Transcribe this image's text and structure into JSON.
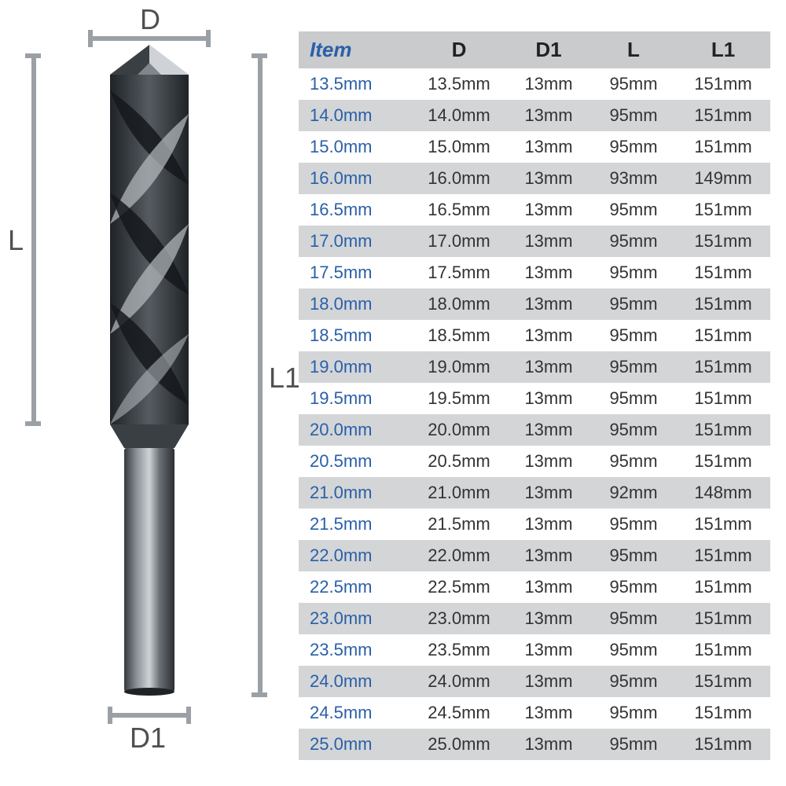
{
  "diagram": {
    "labels": {
      "D": "D",
      "D1": "D1",
      "L": "L",
      "L1": "L1"
    },
    "colors": {
      "dim_line": "#9aa0a6",
      "label_text": "#505050",
      "drill_dark": "#2b2f33",
      "drill_mid": "#555b61",
      "drill_light": "#9aa0a6",
      "drill_highlight": "#cfd3d7"
    }
  },
  "table": {
    "type": "table",
    "header_bg": "#c9cbcd",
    "row_odd_bg": "#ffffff",
    "row_even_bg": "#d3d5d7",
    "item_color": "#2a5fa8",
    "value_color": "#333333",
    "header_value_color": "#222222",
    "font_size_header": 26,
    "font_size_cell": 22,
    "columns": [
      "Item",
      "D",
      "D1",
      "L",
      "L1"
    ],
    "rows": [
      [
        "13.5mm",
        "13.5mm",
        "13mm",
        "95mm",
        "151mm"
      ],
      [
        "14.0mm",
        "14.0mm",
        "13mm",
        "95mm",
        "151mm"
      ],
      [
        "15.0mm",
        "15.0mm",
        "13mm",
        "95mm",
        "151mm"
      ],
      [
        "16.0mm",
        "16.0mm",
        "13mm",
        "93mm",
        "149mm"
      ],
      [
        "16.5mm",
        "16.5mm",
        "13mm",
        "95mm",
        "151mm"
      ],
      [
        "17.0mm",
        "17.0mm",
        "13mm",
        "95mm",
        "151mm"
      ],
      [
        "17.5mm",
        "17.5mm",
        "13mm",
        "95mm",
        "151mm"
      ],
      [
        "18.0mm",
        "18.0mm",
        "13mm",
        "95mm",
        "151mm"
      ],
      [
        "18.5mm",
        "18.5mm",
        "13mm",
        "95mm",
        "151mm"
      ],
      [
        "19.0mm",
        "19.0mm",
        "13mm",
        "95mm",
        "151mm"
      ],
      [
        "19.5mm",
        "19.5mm",
        "13mm",
        "95mm",
        "151mm"
      ],
      [
        "20.0mm",
        "20.0mm",
        "13mm",
        "95mm",
        "151mm"
      ],
      [
        "20.5mm",
        "20.5mm",
        "13mm",
        "95mm",
        "151mm"
      ],
      [
        "21.0mm",
        "21.0mm",
        "13mm",
        "92mm",
        "148mm"
      ],
      [
        "21.5mm",
        "21.5mm",
        "13mm",
        "95mm",
        "151mm"
      ],
      [
        "22.0mm",
        "22.0mm",
        "13mm",
        "95mm",
        "151mm"
      ],
      [
        "22.5mm",
        "22.5mm",
        "13mm",
        "95mm",
        "151mm"
      ],
      [
        "23.0mm",
        "23.0mm",
        "13mm",
        "95mm",
        "151mm"
      ],
      [
        "23.5mm",
        "23.5mm",
        "13mm",
        "95mm",
        "151mm"
      ],
      [
        "24.0mm",
        "24.0mm",
        "13mm",
        "95mm",
        "151mm"
      ],
      [
        "24.5mm",
        "24.5mm",
        "13mm",
        "95mm",
        "151mm"
      ],
      [
        "25.0mm",
        "25.0mm",
        "13mm",
        "95mm",
        "151mm"
      ]
    ]
  }
}
